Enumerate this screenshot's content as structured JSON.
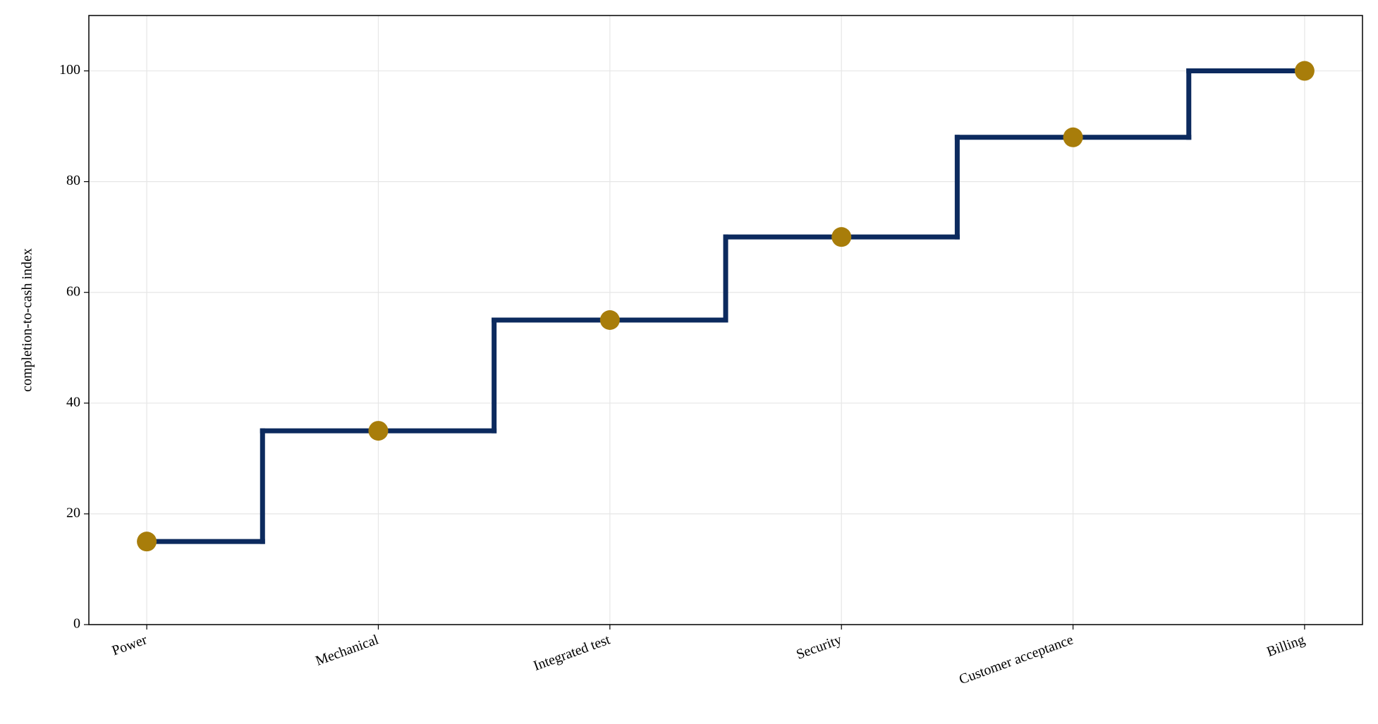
{
  "chart_data": {
    "type": "step",
    "y_label": "completion-to-cash index",
    "categories": [
      "Power",
      "Mechanical",
      "Integrated test",
      "Security",
      "Customer acceptance",
      "Billing"
    ],
    "values": [
      15,
      35,
      55,
      70,
      88,
      100
    ],
    "line_color": "#0c2a5e",
    "marker_color": "#a87d0a",
    "ylim": [
      0,
      110
    ],
    "yticks": [
      0,
      20,
      40,
      60,
      80,
      100
    ],
    "grid": true
  }
}
